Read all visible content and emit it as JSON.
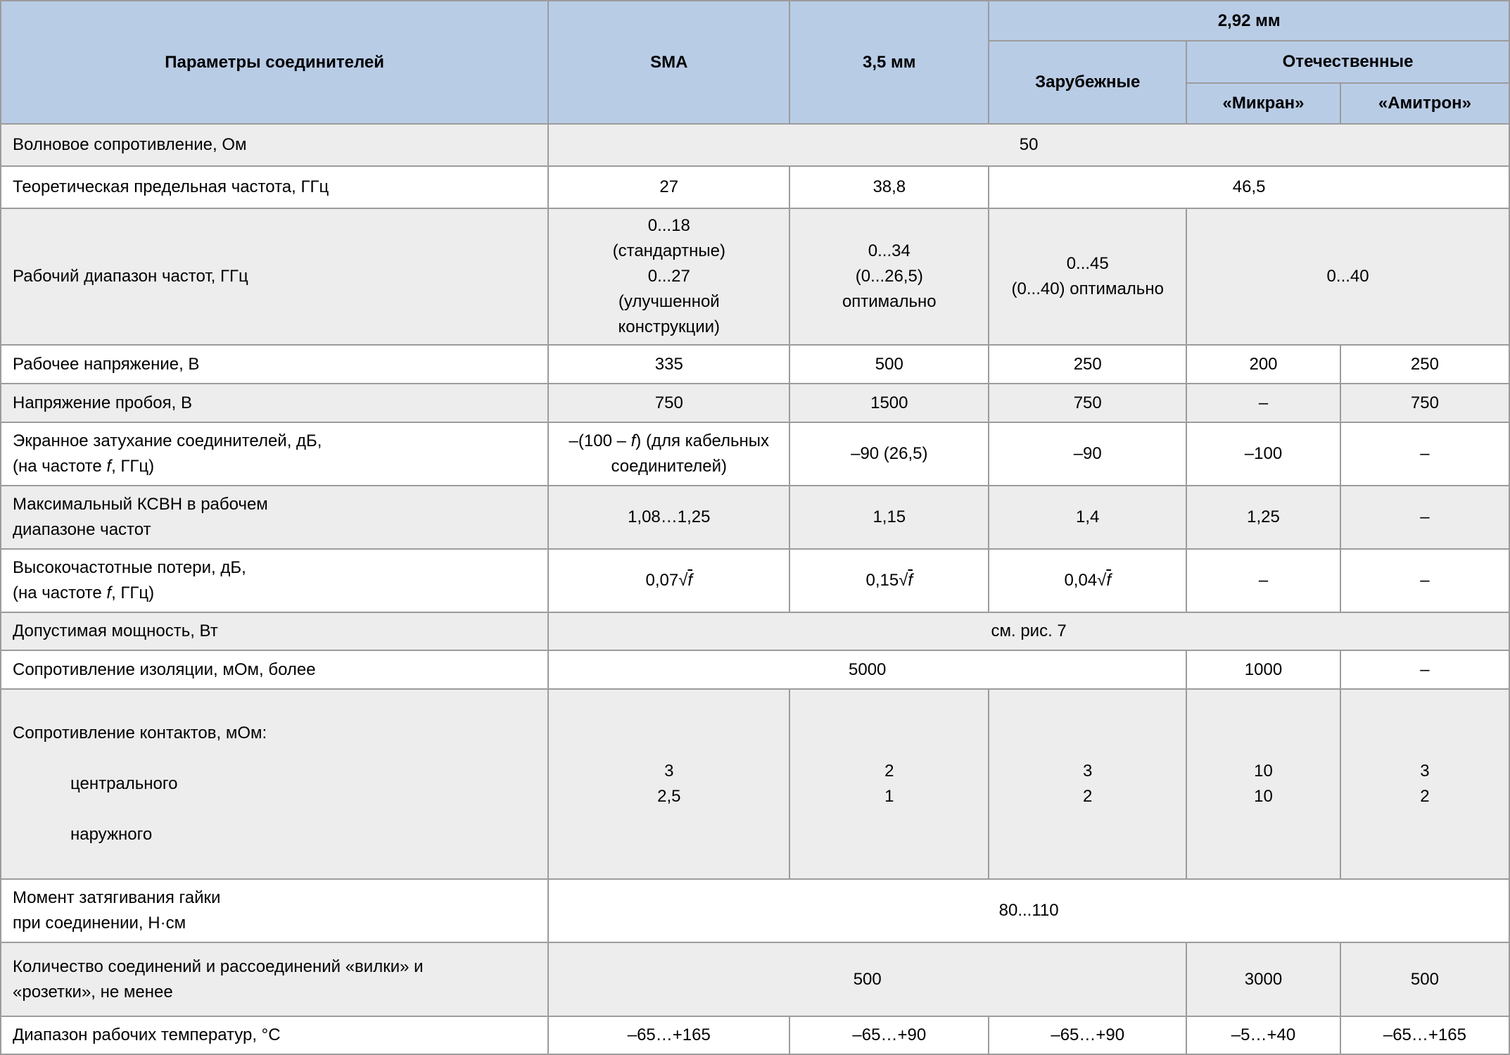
{
  "header": {
    "params": "Параметры соединителей",
    "sma": "SMA",
    "mm35": "3,5 мм",
    "mm292": "2,92 мм",
    "foreign": "Зарубежные",
    "domestic": "Отечественные",
    "mikran": "«Микран»",
    "amitron": "«Амитрон»"
  },
  "rows": {
    "impedance": {
      "label": "Волновое сопротивление, Ом",
      "all": "50"
    },
    "limit_freq": {
      "label": "Теоретическая предельная частота, ГГц",
      "sma": "27",
      "mm35": "38,8",
      "mm292": "46,5"
    },
    "freq_range": {
      "label": "Рабочий диапазон частот, ГГц",
      "sma": "0...18\n(стандартные)\n0...27\n(улучшенной\nконструкции)",
      "mm35": "0...34\n(0...26,5)\nоптимально",
      "foreign": "0...45\n(0...40) оптимально",
      "domestic": "0...40"
    },
    "work_voltage": {
      "label": "Рабочее напряжение, В",
      "sma": "335",
      "mm35": "500",
      "foreign": "250",
      "mikran": "200",
      "amitron": "250"
    },
    "breakdown": {
      "label": "Напряжение пробоя, В",
      "sma": "750",
      "mm35": "1500",
      "foreign": "750",
      "mikran": "–",
      "amitron": "750"
    },
    "shielding": {
      "label_html": "Экранное затухание соединителей, дБ,<br>(на частоте <i>f</i>, ГГц)",
      "sma_html": "–(100 – <i>f</i>) (для кабельных<br>соединителей)",
      "mm35": "–90 (26,5)",
      "foreign": "–90",
      "mikran": "–100",
      "amitron": "–"
    },
    "vswr": {
      "label": "Максимальный КСВН в рабочем\nдиапазоне частот",
      "sma": "1,08…1,25",
      "mm35": "1,15",
      "foreign": "1,4",
      "mikran": "1,25",
      "amitron": "–"
    },
    "hf_loss": {
      "label_html": "Высокочастотные потери, дБ,<br>(на частоте <i>f</i>, ГГц)",
      "sma_html": "0,07√<span class=\"ov\"><i>f</i></span>",
      "mm35_html": "0,15√<span class=\"ov\"><i>f</i></span>",
      "foreign_html": "0,04√<span class=\"ov\"><i>f</i></span>",
      "mikran": "–",
      "amitron": "–"
    },
    "power": {
      "label": "Допустимая мощность, Вт",
      "all": "см. рис. 7"
    },
    "insulation": {
      "label": "Сопротивление изоляции, мОм, более",
      "sma_group": "5000",
      "mikran": "1000",
      "amitron": "–"
    },
    "contact_res": {
      "label": "Сопротивление контактов, мОм:",
      "sub1": "центрального",
      "sub2": "наружного",
      "sma": "3\n2,5",
      "mm35": "2\n1",
      "foreign": "3\n2",
      "mikran": "10\n10",
      "amitron": "3\n2"
    },
    "torque": {
      "label": "Момент затягивания гайки\nпри соединении, Н·см",
      "all": "80...110"
    },
    "cycles": {
      "label": "Количество соединений и рассоединений «вилки» и\n«розетки», не менее",
      "sma_group": "500",
      "mikran": "3000",
      "amitron": "500"
    },
    "temp_range": {
      "label": "Диапазон рабочих температур, °С",
      "sma": "–65…+165",
      "mm35": "–65…+90",
      "foreign": "–65…+90",
      "mikran": "–5…+40",
      "amitron": "–65…+165"
    }
  },
  "colors": {
    "header_bg": "#b9cce6",
    "row_alt_bg": "#ededed",
    "row_bg": "#ffffff",
    "border": "#9c9c9c",
    "text": "#000000"
  }
}
